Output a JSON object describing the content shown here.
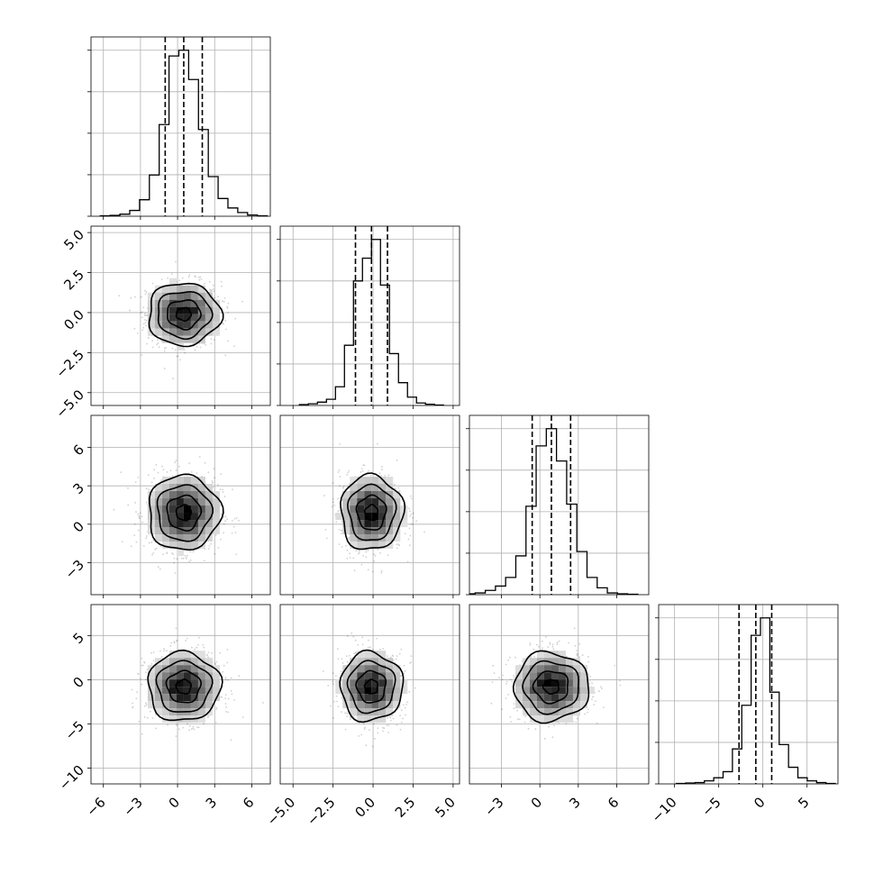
{
  "chart_data": {
    "type": "corner",
    "grid": true,
    "parameters": [
      {
        "range": [
          -7,
          7.5
        ],
        "ticks": [
          -6,
          -3,
          0,
          3,
          6
        ],
        "tick_labels": [
          "−6",
          "−3",
          "0",
          "3",
          "6"
        ],
        "mean": 0.5,
        "sd": 1.5,
        "quantiles": [
          -1.0,
          0.5,
          2.0
        ],
        "hist_counts": [
          1,
          2,
          5,
          14,
          40,
          100,
          222,
          388,
          402,
          331,
          210,
          96,
          43,
          20,
          9,
          3,
          1
        ]
      },
      {
        "range": [
          -5.8,
          5.4
        ],
        "ticks": [
          -5.0,
          -2.5,
          0.0,
          2.5,
          5.0
        ],
        "tick_labels": [
          "−5.0",
          "−2.5",
          "0.0",
          "2.5",
          "5.0"
        ],
        "mean": -0.1,
        "sd": 1.0,
        "quantiles": [
          -1.1,
          -0.1,
          0.9
        ],
        "hist_counts": [
          2,
          4,
          8,
          15,
          45,
          145,
          300,
          355,
          400,
          290,
          125,
          55,
          20,
          6,
          3,
          1
        ]
      },
      {
        "range": [
          -5.5,
          8.5
        ],
        "ticks": [
          -3,
          0,
          3,
          6
        ],
        "tick_labels": [
          "−3",
          "0",
          "3",
          "6"
        ],
        "mean": 0.9,
        "sd": 1.5,
        "quantiles": [
          -0.6,
          0.9,
          2.4
        ],
        "hist_counts": [
          2,
          4,
          10,
          20,
          40,
          90,
          205,
          345,
          385,
          310,
          210,
          100,
          40,
          16,
          4,
          2,
          1
        ]
      },
      {
        "range": [
          -11.8,
          8.5
        ],
        "ticks": [
          -10,
          -5,
          0,
          5
        ],
        "tick_labels": [
          "−10",
          "−5",
          "0",
          "5"
        ],
        "mean": -0.8,
        "sd": 2.0,
        "quantiles": [
          -2.7,
          -0.8,
          1.0
        ],
        "hist_counts": [
          1,
          2,
          3,
          7,
          14,
          28,
          80,
          180,
          340,
          380,
          210,
          90,
          38,
          14,
          7,
          3,
          1
        ]
      }
    ]
  }
}
